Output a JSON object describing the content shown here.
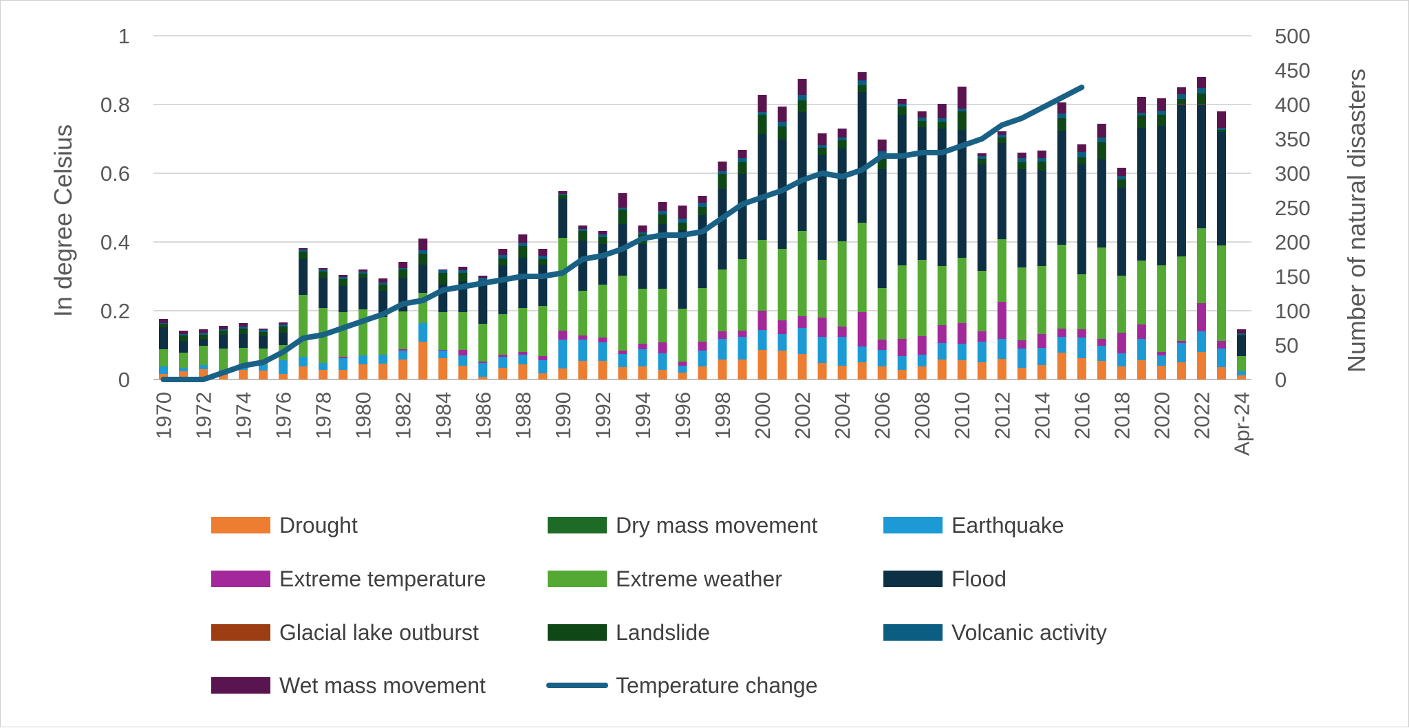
{
  "chart_data": {
    "type": "bar",
    "stacked": true,
    "title": "",
    "ylabel": "In degree Celsius",
    "y2label": "Number of natural disasters",
    "ylim": [
      0,
      1
    ],
    "y2lim": [
      0,
      500
    ],
    "yticks": [
      "0",
      "0.2",
      "0.4",
      "0.6",
      "0.8",
      "1"
    ],
    "y2ticks": [
      "0",
      "50",
      "100",
      "150",
      "200",
      "250",
      "300",
      "350",
      "400",
      "450",
      "500"
    ],
    "categories": [
      "1970",
      "1971",
      "1972",
      "1973",
      "1974",
      "1975",
      "1976",
      "1977",
      "1978",
      "1979",
      "1980",
      "1981",
      "1982",
      "1983",
      "1984",
      "1985",
      "1986",
      "1987",
      "1988",
      "1989",
      "1990",
      "1991",
      "1992",
      "1993",
      "1994",
      "1995",
      "1996",
      "1997",
      "1998",
      "1999",
      "2000",
      "2001",
      "2002",
      "2003",
      "2004",
      "2005",
      "2006",
      "2007",
      "2008",
      "2009",
      "2010",
      "2011",
      "2012",
      "2013",
      "2014",
      "2015",
      "2016",
      "2017",
      "2018",
      "2019",
      "2020",
      "2021",
      "2022",
      "2023",
      "Apr-24"
    ],
    "xtick_labels": [
      "1970",
      "",
      "1972",
      "",
      "1974",
      "",
      "1976",
      "",
      "1978",
      "",
      "1980",
      "",
      "1982",
      "",
      "1984",
      "",
      "1986",
      "",
      "1988",
      "",
      "1990",
      "",
      "1992",
      "",
      "1994",
      "",
      "1996",
      "",
      "1998",
      "",
      "2000",
      "",
      "2002",
      "",
      "2004",
      "",
      "2006",
      "",
      "2008",
      "",
      "2010",
      "",
      "2012",
      "",
      "2014",
      "",
      "2016",
      "",
      "2018",
      "",
      "2020",
      "",
      "2022",
      "",
      "Apr-24"
    ],
    "legend_position": "bottom",
    "series": [
      {
        "name": "Drought",
        "color": "#ED7D31",
        "values": [
          8,
          12,
          15,
          7,
          14,
          13,
          8,
          19,
          14,
          14,
          22,
          23,
          29,
          55,
          31,
          20,
          4,
          17,
          22,
          9,
          16,
          27,
          27,
          18,
          19,
          14,
          10,
          19,
          29,
          29,
          43,
          42,
          37,
          24,
          20,
          25,
          19,
          14,
          19,
          29,
          28,
          25,
          30,
          17,
          21,
          39,
          31,
          27,
          19,
          28,
          20,
          25,
          40,
          18,
          6
        ]
      },
      {
        "name": "Earthquake",
        "color": "#1C9AD6",
        "values": [
          11,
          5,
          6,
          7,
          6,
          8,
          20,
          14,
          10,
          17,
          13,
          13,
          13,
          27,
          11,
          15,
          20,
          16,
          14,
          19,
          42,
          31,
          27,
          19,
          25,
          24,
          10,
          23,
          30,
          33,
          29,
          24,
          38,
          38,
          42,
          23,
          24,
          20,
          17,
          24,
          24,
          30,
          29,
          28,
          25,
          23,
          30,
          22,
          19,
          31,
          15,
          28,
          30,
          27,
          6
        ]
      },
      {
        "name": "Extreme temperature",
        "color": "#A3299B",
        "values": [
          0,
          0,
          0,
          0,
          0,
          0,
          0,
          0,
          0,
          2,
          0,
          0,
          2,
          0,
          1,
          8,
          2,
          3,
          4,
          6,
          13,
          6,
          7,
          5,
          8,
          16,
          6,
          13,
          11,
          9,
          28,
          20,
          17,
          28,
          15,
          50,
          15,
          25,
          27,
          26,
          30,
          15,
          54,
          12,
          20,
          12,
          12,
          10,
          30,
          21,
          5,
          3,
          41,
          11,
          0
        ]
      },
      {
        "name": "Extreme weather",
        "color": "#53A933",
        "values": [
          25,
          22,
          28,
          31,
          26,
          24,
          22,
          90,
          80,
          65,
          67,
          55,
          55,
          44,
          55,
          55,
          55,
          59,
          64,
          73,
          135,
          65,
          77,
          109,
          80,
          78,
          77,
          78,
          90,
          104,
          103,
          104,
          124,
          84,
          124,
          130,
          75,
          107,
          111,
          86,
          95,
          88,
          91,
          106,
          99,
          122,
          80,
          133,
          83,
          93,
          126,
          123,
          109,
          139,
          22
        ]
      },
      {
        "name": "Flood",
        "color": "#0E3045",
        "values": [
          32,
          17,
          10,
          20,
          20,
          18,
          18,
          52,
          44,
          38,
          46,
          38,
          49,
          41,
          40,
          45,
          60,
          71,
          73,
          60,
          57,
          73,
          59,
          75,
          65,
          94,
          114,
          106,
          117,
          124,
          154,
          159,
          173,
          153,
          135,
          190,
          173,
          219,
          193,
          200,
          186,
          155,
          140,
          143,
          139,
          166,
          160,
          128,
          128,
          193,
          203,
          221,
          180,
          165,
          30
        ]
      },
      {
        "name": "Glacial lake outburst",
        "color": "#9C3D14",
        "values": [
          0,
          0,
          0,
          0,
          0,
          0,
          0,
          0,
          0,
          0,
          0,
          0,
          0,
          0,
          0,
          0,
          0,
          0,
          0,
          0,
          0,
          0,
          0,
          0,
          0,
          0,
          0,
          0,
          0,
          0,
          0,
          0,
          0,
          0,
          0,
          0,
          0,
          0,
          0,
          0,
          0,
          0,
          0,
          0,
          0,
          0,
          0,
          0,
          0,
          0,
          0,
          1,
          1,
          0,
          0
        ]
      },
      {
        "name": "Landslide",
        "color": "#0F4716",
        "values": [
          5,
          8,
          6,
          6,
          8,
          6,
          9,
          11,
          9,
          10,
          6,
          9,
          12,
          16,
          17,
          12,
          3,
          10,
          17,
          8,
          5,
          14,
          10,
          21,
          14,
          14,
          11,
          12,
          22,
          17,
          28,
          19,
          17,
          10,
          12,
          10,
          18,
          12,
          9,
          10,
          27,
          8,
          8,
          10,
          13,
          18,
          10,
          25,
          12,
          18,
          16,
          7,
          15,
          3,
          1
        ]
      },
      {
        "name": "Dry mass movement",
        "color": "#1D6B27",
        "values": [
          0,
          0,
          0,
          0,
          0,
          0,
          0,
          0,
          0,
          0,
          0,
          0,
          0,
          0,
          0,
          0,
          0,
          0,
          0,
          0,
          0,
          0,
          0,
          0,
          0,
          0,
          0,
          0,
          0,
          0,
          0,
          0,
          0,
          0,
          0,
          0,
          0,
          0,
          0,
          0,
          0,
          0,
          0,
          0,
          0,
          0,
          0,
          0,
          0,
          0,
          0,
          0,
          0,
          0,
          0
        ]
      },
      {
        "name": "Volcanic activity",
        "color": "#0B5E82",
        "values": [
          1,
          2,
          3,
          2,
          3,
          3,
          3,
          3,
          3,
          3,
          3,
          3,
          2,
          5,
          4,
          4,
          4,
          5,
          5,
          5,
          2,
          3,
          4,
          3,
          3,
          5,
          6,
          6,
          4,
          6,
          4,
          7,
          8,
          4,
          4,
          7,
          8,
          4,
          5,
          5,
          4,
          4,
          4,
          6,
          5,
          7,
          8,
          7,
          5,
          4,
          6,
          7,
          8,
          3,
          2
        ]
      },
      {
        "name": "Wet mass movement",
        "color": "#5A1550",
        "values": [
          6,
          5,
          5,
          5,
          5,
          2,
          3,
          2,
          2,
          3,
          3,
          6,
          9,
          17,
          1,
          5,
          3,
          9,
          12,
          10,
          4,
          5,
          5,
          21,
          10,
          13,
          19,
          10,
          14,
          12,
          25,
          22,
          23,
          17,
          13,
          12,
          17,
          7,
          9,
          21,
          32,
          4,
          5,
          8,
          11,
          16,
          11,
          20,
          12,
          23,
          18,
          10,
          16,
          24,
          6
        ]
      }
    ],
    "line_series": {
      "name": "Temperature change",
      "color": "#1A6186",
      "axis": "primary",
      "x_categories": [
        "1970",
        "1971",
        "1972",
        "1973",
        "1974",
        "1975",
        "1976",
        "1977",
        "1978",
        "1979",
        "1980",
        "1981",
        "1982",
        "1983",
        "1984",
        "1985",
        "1986",
        "1987",
        "1988",
        "1989",
        "1990",
        "1991",
        "1992",
        "1993",
        "1994",
        "1995",
        "1996",
        "1997",
        "1998",
        "1999",
        "2000",
        "2001",
        "2002",
        "2003",
        "2004",
        "2005",
        "2006",
        "2007",
        "2008",
        "2009",
        "2010",
        "2011",
        "2012",
        "2013",
        "2014",
        "2015",
        "2016"
      ],
      "values": [
        0,
        0,
        0,
        0.02,
        0.04,
        0.05,
        0.08,
        0.12,
        0.13,
        0.15,
        0.17,
        0.19,
        0.22,
        0.23,
        0.26,
        0.27,
        0.28,
        0.29,
        0.3,
        0.3,
        0.31,
        0.35,
        0.36,
        0.38,
        0.41,
        0.42,
        0.42,
        0.43,
        0.47,
        0.51,
        0.53,
        0.55,
        0.58,
        0.6,
        0.59,
        0.61,
        0.65,
        0.65,
        0.66,
        0.66,
        0.68,
        0.7,
        0.74,
        0.76,
        0.79,
        0.82,
        0.85
      ]
    }
  }
}
